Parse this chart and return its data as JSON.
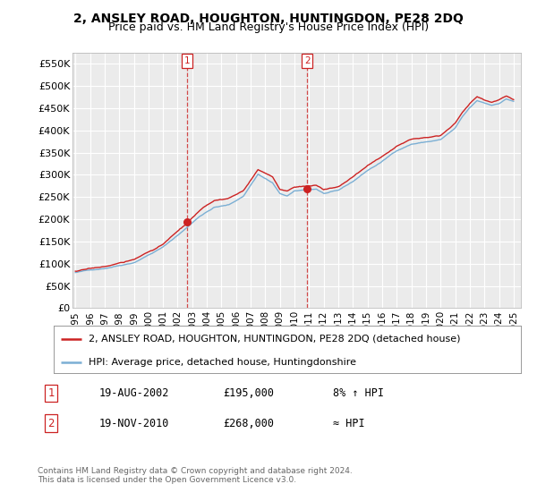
{
  "title": "2, ANSLEY ROAD, HOUGHTON, HUNTINGDON, PE28 2DQ",
  "subtitle": "Price paid vs. HM Land Registry's House Price Index (HPI)",
  "ylim": [
    0,
    575000
  ],
  "yticks": [
    0,
    50000,
    100000,
    150000,
    200000,
    250000,
    300000,
    350000,
    400000,
    450000,
    500000,
    550000
  ],
  "ytick_labels": [
    "£0",
    "£50K",
    "£100K",
    "£150K",
    "£200K",
    "£250K",
    "£300K",
    "£350K",
    "£400K",
    "£450K",
    "£500K",
    "£550K"
  ],
  "background_color": "#ffffff",
  "plot_bg_color": "#ebebeb",
  "grid_color": "#ffffff",
  "hpi_color": "#7bafd4",
  "price_color": "#cc2222",
  "sale1_year": 2002.625,
  "sale1_price": 195000,
  "sale2_year": 2010.88,
  "sale2_price": 268000,
  "legend_price_label": "2, ANSLEY ROAD, HOUGHTON, HUNTINGDON, PE28 2DQ (detached house)",
  "legend_hpi_label": "HPI: Average price, detached house, Huntingdonshire",
  "footer": "Contains HM Land Registry data © Crown copyright and database right 2024.\nThis data is licensed under the Open Government Licence v3.0.",
  "title_fontsize": 10,
  "subtitle_fontsize": 9,
  "tick_fontsize": 8,
  "ann_fontsize": 8.5,
  "legend_fontsize": 8,
  "footer_fontsize": 6.5
}
